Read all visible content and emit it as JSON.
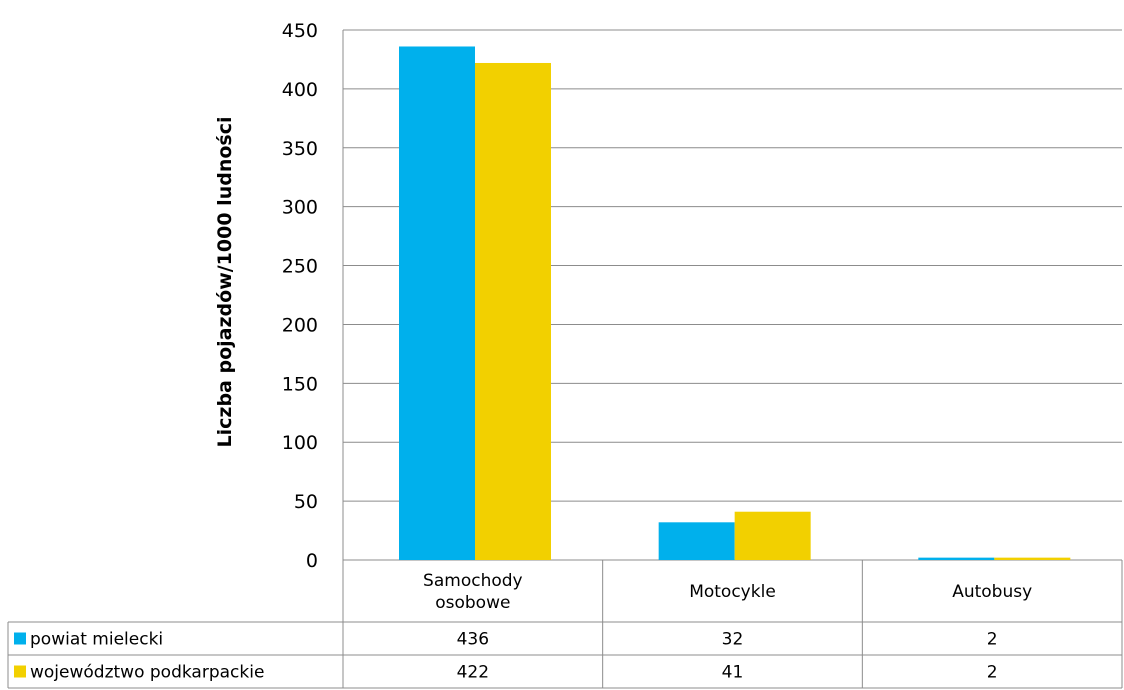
{
  "chart_data": {
    "type": "bar",
    "categories": [
      "Samochody osobowe",
      "Motocykle",
      "Autobusy"
    ],
    "category_lines": [
      [
        "Samochody",
        "osobowe"
      ],
      [
        "Motocykle"
      ],
      [
        "Autobusy"
      ]
    ],
    "series": [
      {
        "name": "powiat mielecki",
        "values": [
          436,
          32,
          2
        ],
        "labels": [
          "436",
          "32",
          "2"
        ],
        "color": "#00b0ec"
      },
      {
        "name": "województwo podkarpackie",
        "values": [
          422,
          41,
          2
        ],
        "labels": [
          "422",
          "41",
          "2"
        ],
        "color": "#f2d000"
      }
    ],
    "ylabel": "Liczba pojazdów/1000 ludności",
    "ylim": [
      0,
      450
    ],
    "yticks": [
      "0",
      "50",
      "100",
      "150",
      "200",
      "250",
      "300",
      "350",
      "400",
      "450"
    ],
    "grid": true,
    "legend": "data-table"
  }
}
